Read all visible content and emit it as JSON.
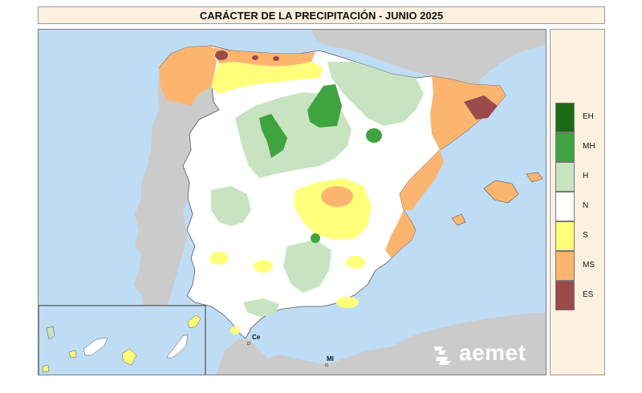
{
  "title": "CARÁCTER DE LA PRECIPITACIÓN - JUNIO 2025",
  "legend": [
    {
      "code": "EH",
      "color": "#1c6b14"
    },
    {
      "code": "MH",
      "color": "#3fa33f"
    },
    {
      "code": "H",
      "color": "#c8e3bf"
    },
    {
      "code": "N",
      "color": "#ffffff"
    },
    {
      "code": "S",
      "color": "#ffff7a"
    },
    {
      "code": "MS",
      "color": "#fbb56f"
    },
    {
      "code": "ES",
      "color": "#9b4a4a"
    }
  ],
  "cities": {
    "ceuta": "Ce",
    "melilla": "Ml"
  },
  "logo": {
    "text": "aemet"
  },
  "colors": {
    "sea": "#bfdcf5",
    "foreign_land": "#cbcbcb",
    "panel_bg": "#fdf0df"
  }
}
